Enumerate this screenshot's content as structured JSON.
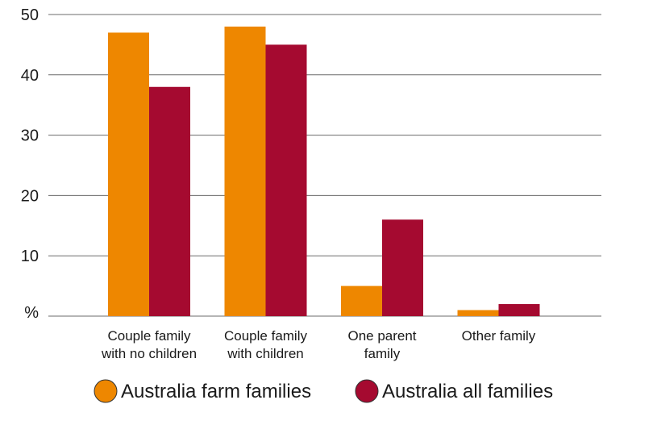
{
  "chart_data": {
    "type": "bar",
    "title": "",
    "xlabel": "",
    "ylabel": "%",
    "ylim": [
      0,
      50
    ],
    "yticks": [
      10,
      20,
      30,
      40,
      50
    ],
    "y_zero_label": "%",
    "grid": true,
    "categories": [
      [
        "Couple family",
        "with no children"
      ],
      [
        "Couple family",
        "with children"
      ],
      [
        "One parent",
        "family"
      ],
      [
        "Other family"
      ]
    ],
    "series": [
      {
        "name": "Australia farm families",
        "color": "#EE8700",
        "values": [
          47,
          48,
          5,
          1
        ]
      },
      {
        "name": "Australia all families",
        "color": "#A50A30",
        "values": [
          38,
          45,
          16,
          2
        ]
      }
    ],
    "legend_position": "bottom"
  }
}
